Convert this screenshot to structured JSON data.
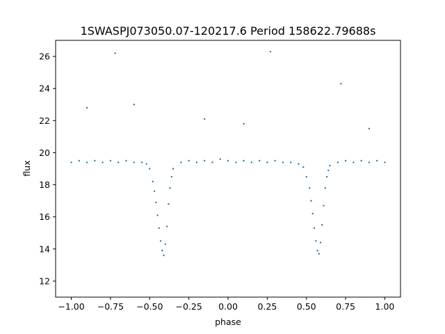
{
  "chart_data": {
    "type": "scatter",
    "title": "1SWASPJ073050.07-120217.6 Period 158622.79688s",
    "xlabel": "phase",
    "ylabel": "flux",
    "xlim": [
      -1.1,
      1.1
    ],
    "ylim": [
      11.0,
      27.0
    ],
    "xticks": [
      -1.0,
      -0.75,
      -0.5,
      -0.25,
      0.0,
      0.25,
      0.5,
      0.75,
      1.0
    ],
    "xtick_labels": [
      "−1.00",
      "−0.75",
      "−0.50",
      "−0.25",
      "0.00",
      "0.25",
      "0.50",
      "0.75",
      "1.00"
    ],
    "yticks": [
      12,
      14,
      16,
      18,
      20,
      22,
      24,
      26
    ],
    "ytick_labels": [
      "12",
      "14",
      "16",
      "18",
      "20",
      "22",
      "24",
      "26"
    ],
    "grid": false,
    "legend": "none",
    "color": "#1f77b4",
    "series": [
      {
        "x": [
          -1.0,
          -0.95,
          -0.9,
          -0.85,
          -0.8,
          -0.75,
          -0.7,
          -0.65,
          -0.6,
          -0.55,
          -0.52,
          -0.5,
          -0.48,
          -0.47,
          -0.46,
          -0.45,
          -0.44,
          -0.43,
          -0.42,
          -0.41,
          -0.4,
          -0.39,
          -0.38,
          -0.37,
          -0.36,
          -0.35,
          -0.3,
          -0.25,
          -0.2,
          -0.15,
          -0.1,
          -0.05,
          0.0,
          0.05,
          0.1,
          0.15,
          0.2,
          0.25,
          0.3,
          0.35,
          0.4,
          0.45,
          0.48,
          0.5,
          0.52,
          0.53,
          0.54,
          0.55,
          0.56,
          0.57,
          0.58,
          0.59,
          0.6,
          0.61,
          0.62,
          0.63,
          0.64,
          0.65,
          0.7,
          0.75,
          0.8,
          0.85,
          0.9,
          0.95,
          1.0,
          -0.72,
          -0.9,
          0.27,
          0.72,
          0.9,
          -0.6,
          0.1,
          -0.15
        ],
        "y": [
          19.4,
          19.5,
          19.4,
          19.5,
          19.4,
          19.5,
          19.4,
          19.5,
          19.4,
          19.4,
          19.3,
          19.0,
          18.2,
          17.6,
          16.9,
          16.1,
          15.3,
          14.5,
          13.9,
          13.6,
          14.3,
          15.4,
          16.8,
          17.8,
          18.5,
          19.0,
          19.4,
          19.5,
          19.4,
          19.5,
          19.4,
          19.6,
          19.5,
          19.4,
          19.5,
          19.4,
          19.5,
          19.4,
          19.5,
          19.4,
          19.4,
          19.3,
          19.1,
          18.5,
          17.8,
          17.0,
          16.2,
          15.3,
          14.5,
          13.9,
          13.7,
          14.4,
          15.5,
          16.7,
          17.8,
          18.5,
          18.9,
          19.2,
          19.4,
          19.5,
          19.4,
          19.5,
          19.4,
          19.5,
          19.4,
          26.2,
          22.8,
          26.3,
          24.3,
          21.5,
          23.0,
          21.8,
          22.1
        ]
      }
    ]
  }
}
